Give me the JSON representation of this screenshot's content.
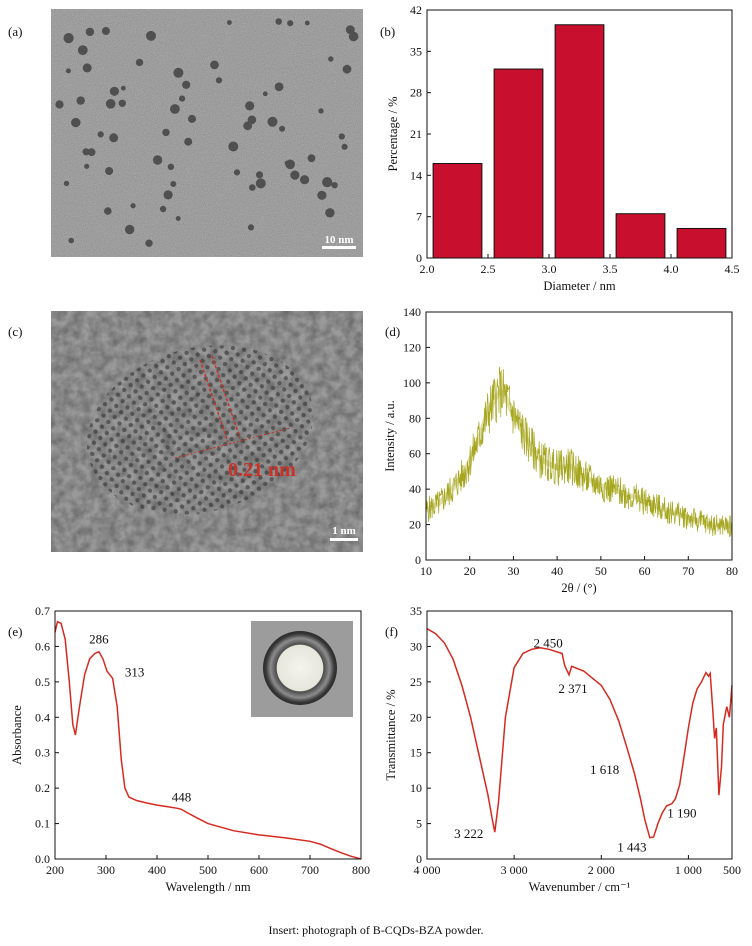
{
  "caption": "Insert: photograph of B-CQDs-BZA powder.",
  "panels": {
    "a": {
      "label": "(a)",
      "scale_bar": "10 nm"
    },
    "b": {
      "label": "(b)"
    },
    "c": {
      "label": "(c)",
      "scale_bar": "1 nm",
      "lattice_spacing": "0.21 nm"
    },
    "d": {
      "label": "(d)"
    },
    "e": {
      "label": "(e)"
    },
    "f": {
      "label": "(f)"
    }
  },
  "chart_data": [
    {
      "panel": "b",
      "type": "bar",
      "xlabel": "Diameter / nm",
      "ylabel": "Percentage / %",
      "bar_color": "#c8102e",
      "xlim": [
        2.0,
        4.5
      ],
      "ylim": [
        0,
        42
      ],
      "xticks": [
        "2.0",
        "2.5",
        "3.0",
        "3.5",
        "4.0",
        "4.5"
      ],
      "yticks": [
        "0",
        "7",
        "14",
        "21",
        "28",
        "35",
        "42"
      ],
      "bars": [
        {
          "from": 2.05,
          "to": 2.45,
          "value": 16
        },
        {
          "from": 2.55,
          "to": 2.95,
          "value": 32
        },
        {
          "from": 3.05,
          "to": 3.45,
          "value": 39.5
        },
        {
          "from": 3.55,
          "to": 3.95,
          "value": 7.5
        },
        {
          "from": 4.05,
          "to": 4.45,
          "value": 5
        }
      ]
    },
    {
      "panel": "d",
      "type": "line",
      "xlabel": "2θ / (°)",
      "ylabel": "Intensity / a.u.",
      "line_color": "#a6a61e",
      "xlim": [
        10,
        80
      ],
      "ylim": [
        0,
        140
      ],
      "xticks": [
        "10",
        "20",
        "30",
        "40",
        "50",
        "60",
        "70",
        "80"
      ],
      "yticks": [
        "0",
        "20",
        "40",
        "60",
        "80",
        "100",
        "120",
        "140"
      ],
      "x": [
        10,
        13,
        16,
        19,
        22,
        24,
        26,
        27,
        28,
        30,
        33,
        36,
        40,
        43,
        46,
        50,
        55,
        60,
        65,
        70,
        75,
        80
      ],
      "y": [
        28,
        32,
        40,
        50,
        68,
        82,
        92,
        95,
        93,
        82,
        68,
        57,
        52,
        53,
        47,
        42,
        38,
        33,
        28,
        24,
        20,
        19
      ]
    },
    {
      "panel": "e",
      "type": "line",
      "xlabel": "Wavelength / nm",
      "ylabel": "Absorbance",
      "line_color": "#d42a20",
      "xlim": [
        200,
        800
      ],
      "ylim": [
        0,
        0.7
      ],
      "xticks": [
        "200",
        "300",
        "400",
        "500",
        "600",
        "700",
        "800"
      ],
      "yticks": [
        "0.0",
        "0.1",
        "0.2",
        "0.3",
        "0.4",
        "0.5",
        "0.6",
        "0.7"
      ],
      "x": [
        200,
        205,
        212,
        220,
        228,
        235,
        240,
        248,
        258,
        268,
        278,
        286,
        294,
        302,
        313,
        322,
        330,
        337,
        345,
        360,
        380,
        400,
        420,
        440,
        448,
        460,
        480,
        500,
        550,
        600,
        650,
        700,
        720,
        740,
        760,
        780,
        800
      ],
      "y": [
        0.64,
        0.67,
        0.665,
        0.62,
        0.5,
        0.38,
        0.35,
        0.43,
        0.52,
        0.565,
        0.58,
        0.585,
        0.565,
        0.53,
        0.51,
        0.43,
        0.28,
        0.2,
        0.175,
        0.165,
        0.158,
        0.152,
        0.148,
        0.143,
        0.14,
        0.13,
        0.115,
        0.1,
        0.08,
        0.068,
        0.06,
        0.05,
        0.042,
        0.03,
        0.018,
        0.008,
        0.0
      ],
      "annotations": [
        {
          "text": "286",
          "x": 286,
          "y": 0.585
        },
        {
          "text": "313",
          "x": 313,
          "y": 0.51
        },
        {
          "text": "448",
          "x": 448,
          "y": 0.14
        }
      ]
    },
    {
      "panel": "f",
      "type": "line",
      "xlabel": "Wavenumber / cm⁻¹",
      "ylabel": "Transmittance / %",
      "line_color": "#d42a20",
      "xlim": [
        4000,
        500
      ],
      "ylim": [
        0,
        35
      ],
      "xticks": [
        "4 000",
        "3 000",
        "2 000",
        "1 000",
        "500"
      ],
      "yticks": [
        "0",
        "5",
        "10",
        "15",
        "20",
        "25",
        "30",
        "35"
      ],
      "x": [
        4000,
        3900,
        3800,
        3700,
        3600,
        3500,
        3400,
        3300,
        3250,
        3222,
        3180,
        3100,
        3000,
        2900,
        2800,
        2700,
        2600,
        2450,
        2420,
        2371,
        2340,
        2300,
        2200,
        2100,
        2000,
        1900,
        1800,
        1700,
        1618,
        1550,
        1500,
        1443,
        1400,
        1350,
        1300,
        1250,
        1190,
        1150,
        1100,
        1050,
        1000,
        950,
        900,
        850,
        800,
        770,
        750,
        720,
        700,
        680,
        650,
        620,
        600,
        560,
        530,
        500
      ],
      "y": [
        32.5,
        31.8,
        30.5,
        28.2,
        24.5,
        20.0,
        14.5,
        9.0,
        5.5,
        3.8,
        8.0,
        20.0,
        27.0,
        29.0,
        29.6,
        29.8,
        29.6,
        29.0,
        27.3,
        26.0,
        27.2,
        27.0,
        26.5,
        25.5,
        24.5,
        22.5,
        19.5,
        15.5,
        12.0,
        8.5,
        5.5,
        3.0,
        3.1,
        5.0,
        6.5,
        7.5,
        7.8,
        8.5,
        10.5,
        14.5,
        18.5,
        22.0,
        24.0,
        25.0,
        26.3,
        25.8,
        26.2,
        21.0,
        17.0,
        18.5,
        9.0,
        13.0,
        19.0,
        21.5,
        20.0,
        24.5
      ],
      "annotations": [
        {
          "text": "3 222",
          "x": 3222,
          "y": 3.8
        },
        {
          "text": "2 450",
          "x": 2450,
          "y": 29.0
        },
        {
          "text": "2 371",
          "x": 2371,
          "y": 26.0
        },
        {
          "text": "1 618",
          "x": 1618,
          "y": 12.0
        },
        {
          "text": "1 443",
          "x": 1443,
          "y": 3.0
        },
        {
          "text": "1 190",
          "x": 1190,
          "y": 7.8
        }
      ]
    }
  ]
}
